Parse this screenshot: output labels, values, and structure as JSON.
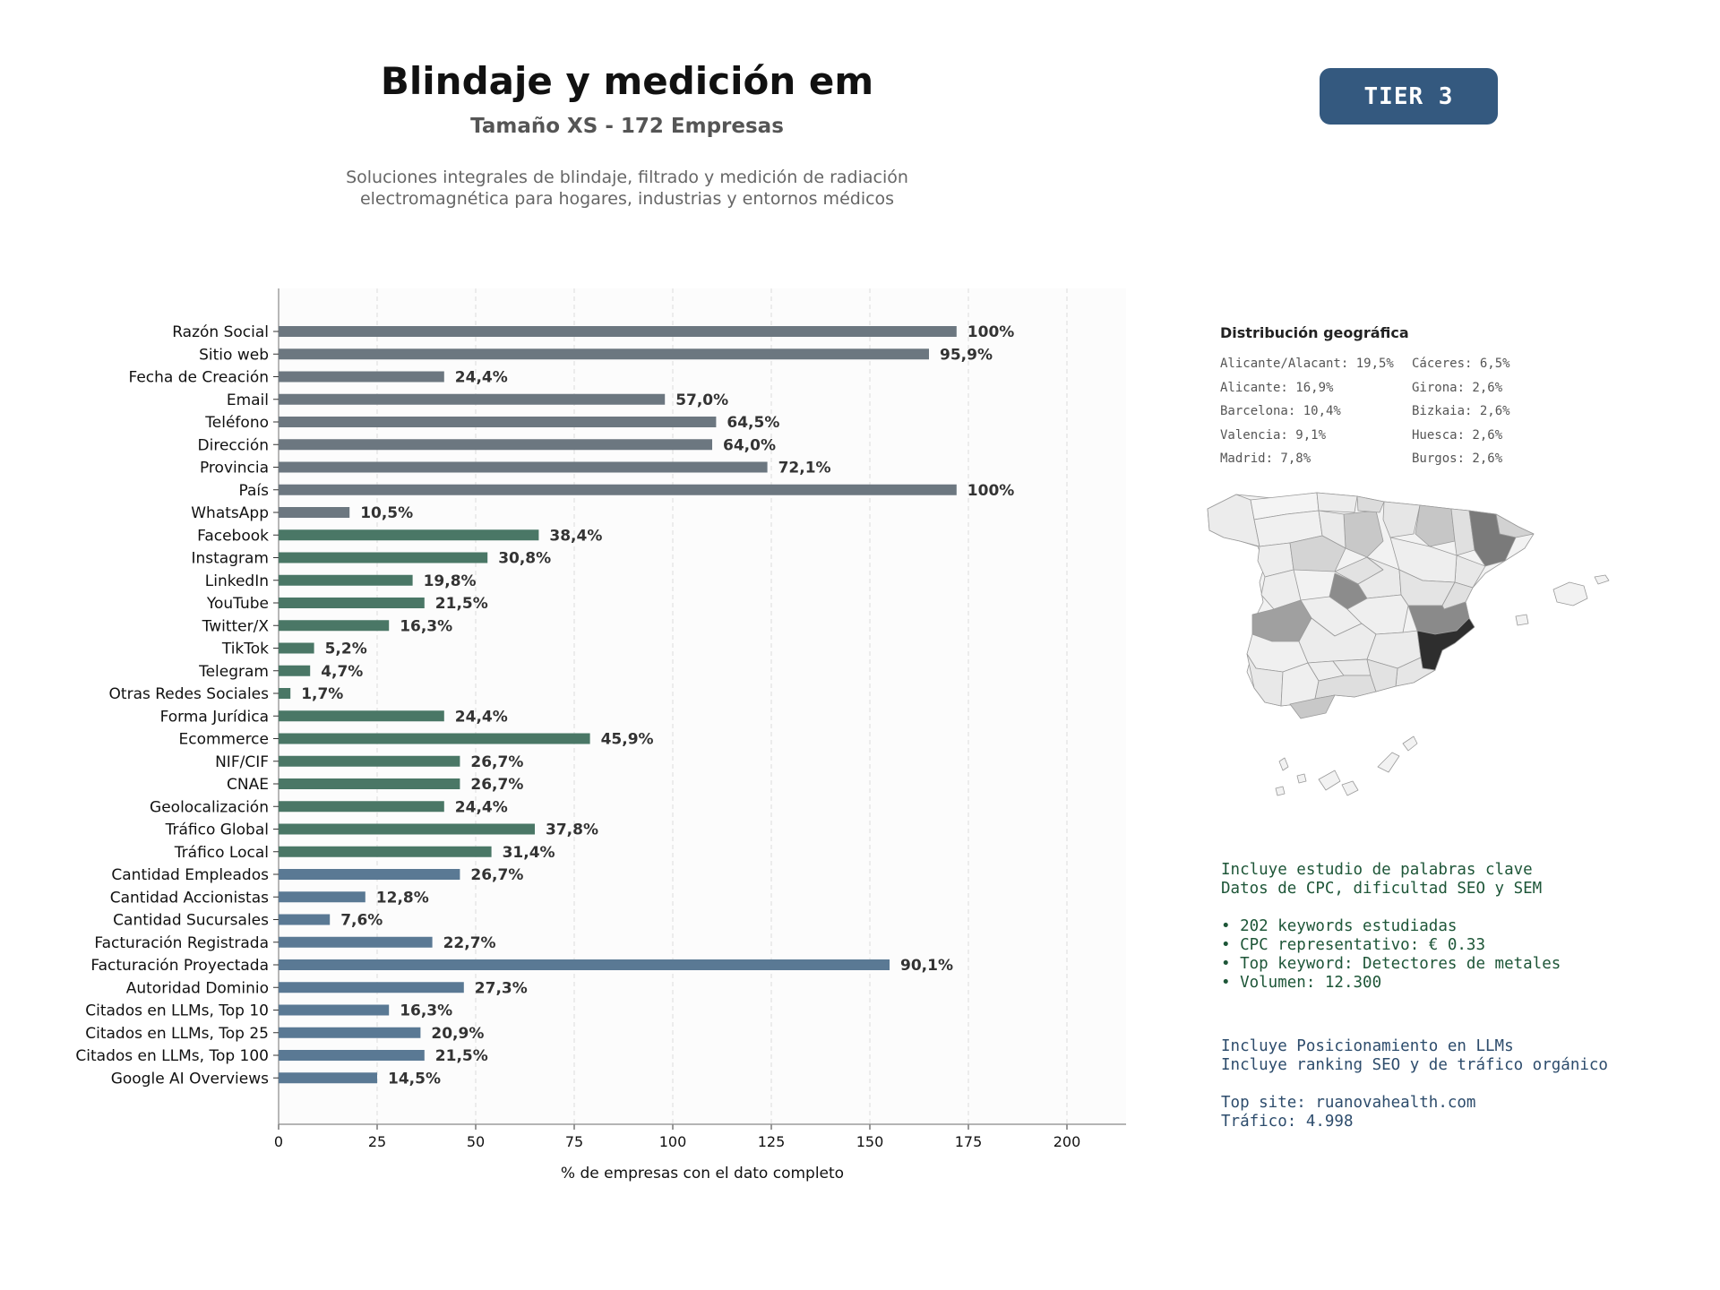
{
  "header": {
    "title": "Blindaje y medición em",
    "subtitle": "Tamaño XS - 172 Empresas",
    "description_line1": "Soluciones integrales de blindaje, filtrado y medición de radiación",
    "description_line2": "electromagnética para hogares, industrias y entornos médicos",
    "tier_label": "TIER 3"
  },
  "colors": {
    "gray_bar": "#6c7780",
    "green_bar": "#4a7766",
    "blue_bar": "#5a7994",
    "tier_bg": "#34597f"
  },
  "chart_data": {
    "type": "bar",
    "orientation": "horizontal",
    "xlabel": "% de empresas con el dato completo",
    "xlim": [
      0,
      215
    ],
    "xticks": [
      0,
      25,
      50,
      75,
      100,
      125,
      150,
      175,
      200
    ],
    "grid": "vertical dashed",
    "categories": [
      "Razón Social",
      "Sitio web",
      "Fecha de Creación",
      "Email",
      "Teléfono",
      "Dirección",
      "Provincia",
      "País",
      "WhatsApp",
      "Facebook",
      "Instagram",
      "LinkedIn",
      "YouTube",
      "Twitter/X",
      "TikTok",
      "Telegram",
      "Otras Redes Sociales",
      "Forma Jurídica",
      "Ecommerce",
      "NIF/CIF",
      "CNAE",
      "Geolocalización",
      "Tráfico Global",
      "Tráfico Local",
      "Cantidad Empleados",
      "Cantidad Accionistas",
      "Cantidad Sucursales",
      "Facturación Registrada",
      "Facturación Proyectada",
      "Autoridad Dominio",
      "Citados en LLMs, Top 10",
      "Citados en LLMs, Top 25",
      "Citados en LLMs, Top 100",
      "Google AI Overviews"
    ],
    "values": [
      172,
      165,
      42,
      98,
      111,
      110,
      124,
      172,
      18,
      66,
      53,
      34,
      37,
      28,
      9,
      8,
      3,
      42,
      79,
      46,
      46,
      42,
      65,
      54,
      46,
      22,
      13,
      39,
      155,
      47,
      28,
      36,
      37,
      25
    ],
    "labels": [
      "100%",
      "95,9%",
      "24,4%",
      "57,0%",
      "64,5%",
      "64,0%",
      "72,1%",
      "100%",
      "10,5%",
      "38,4%",
      "30,8%",
      "19,8%",
      "21,5%",
      "16,3%",
      "5,2%",
      "4,7%",
      "1,7%",
      "24,4%",
      "45,9%",
      "26,7%",
      "26,7%",
      "24,4%",
      "37,8%",
      "31,4%",
      "26,7%",
      "12,8%",
      "7,6%",
      "22,7%",
      "90,1%",
      "27,3%",
      "16,3%",
      "20,9%",
      "21,5%",
      "14,5%"
    ],
    "groups": [
      "gray",
      "gray",
      "gray",
      "gray",
      "gray",
      "gray",
      "gray",
      "gray",
      "gray",
      "green",
      "green",
      "green",
      "green",
      "green",
      "green",
      "green",
      "green",
      "green",
      "green",
      "green",
      "green",
      "green",
      "green",
      "green",
      "blue",
      "blue",
      "blue",
      "blue",
      "blue",
      "blue",
      "blue",
      "blue",
      "blue",
      "blue"
    ]
  },
  "geo": {
    "title": "Distribución geográfica",
    "items": [
      "Alicante/Alacant: 19,5%",
      "Cáceres: 6,5%",
      "Alicante: 16,9%",
      "Girona: 2,6%",
      "Barcelona: 10,4%",
      "Bizkaia: 2,6%",
      "Valencia: 9,1%",
      "Huesca: 2,6%",
      "Madrid: 7,8%",
      "Burgos: 2,6%"
    ]
  },
  "keywords": {
    "line1": "Incluye estudio de palabras clave",
    "line2": "Datos de CPC, dificultad SEO y SEM",
    "bullet1": "• 202 keywords estudiadas",
    "bullet2": "• CPC representativo: € 0.33",
    "bullet3": "• Top keyword: Detectores de metales",
    "bullet4": "• Volumen: 12.300"
  },
  "llm": {
    "line1": "Incluye Posicionamiento en LLMs",
    "line2": "Incluye ranking SEO y de tráfico orgánico",
    "top_site": "Top site: ruanovahealth.com",
    "traffic": "Tráfico: 4.998"
  }
}
